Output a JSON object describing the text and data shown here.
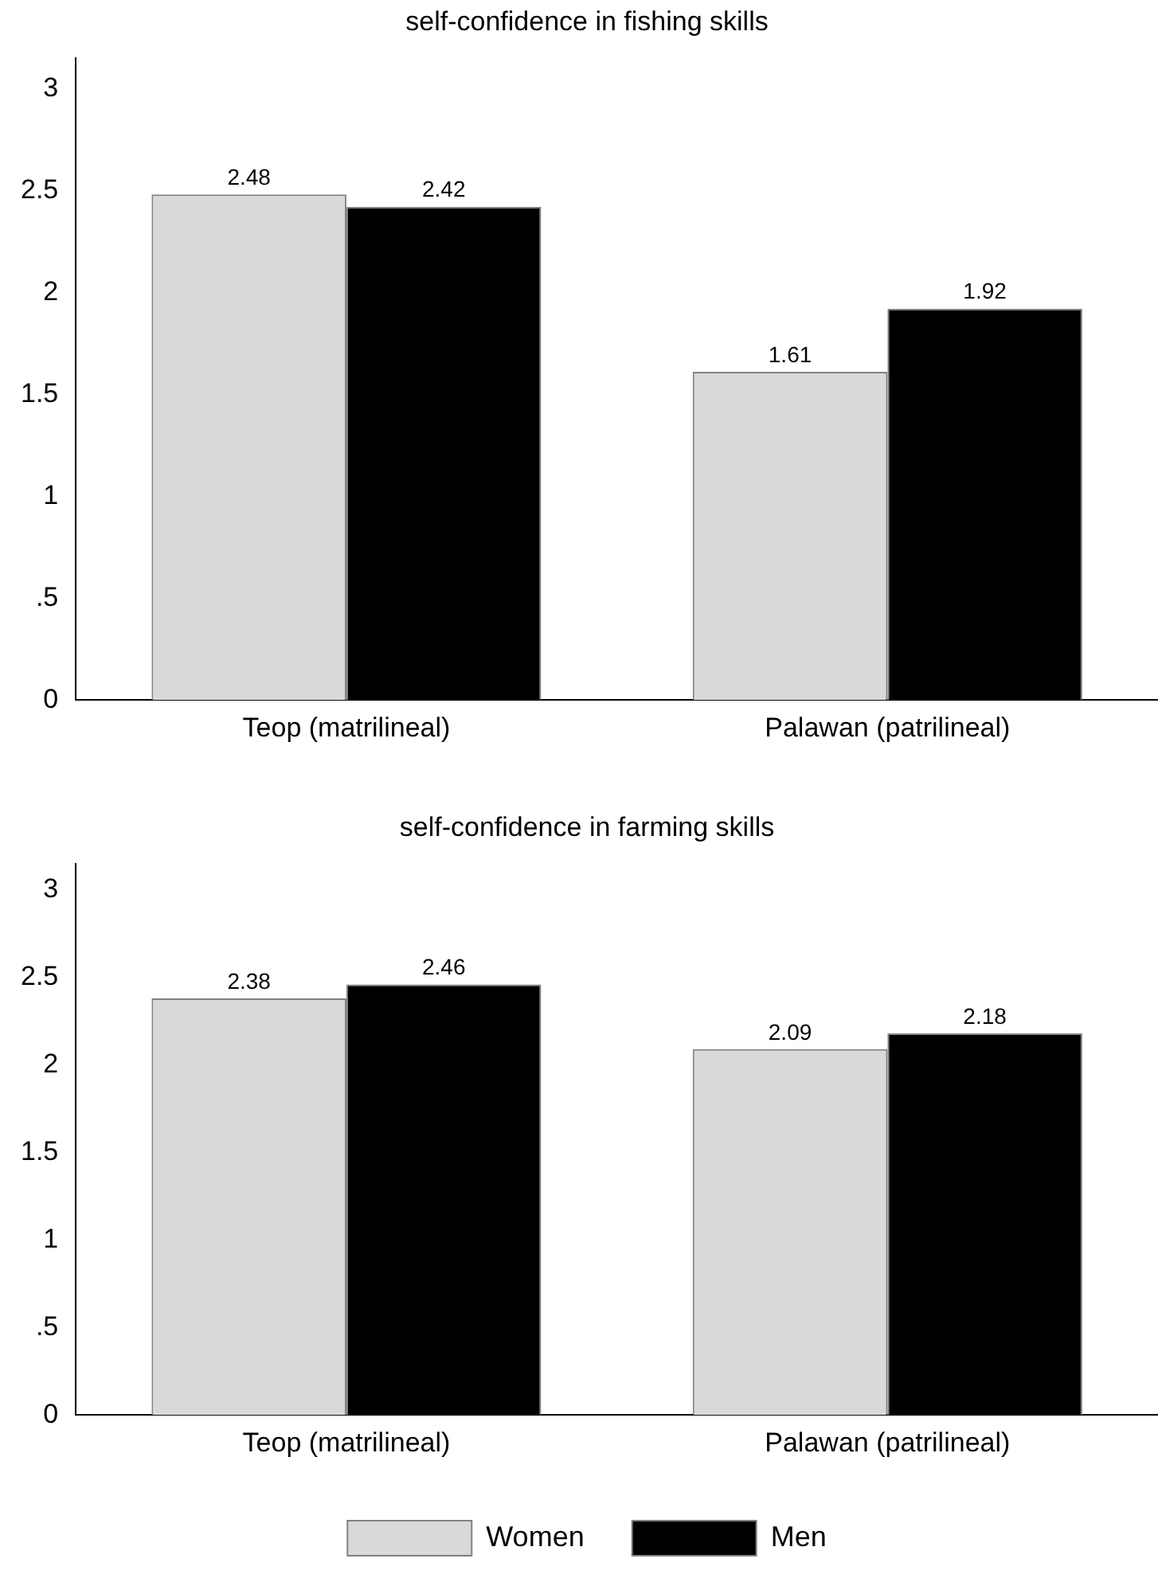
{
  "chart_data": [
    {
      "type": "bar",
      "title": "self-confidence in fishing skills",
      "categories": [
        "Teop (matrilineal)",
        "Palawan (patrilineal)"
      ],
      "series": [
        {
          "color": "#d9d9d9",
          "values": [
            2.48,
            1.61
          ]
        },
        {
          "color": "#000000",
          "values": [
            2.42,
            1.92
          ]
        }
      ],
      "ylim": [
        0,
        3.15
      ],
      "yticks": [
        0,
        {
          "value": 0.5,
          "label": ".5"
        },
        1,
        1.5,
        2,
        2.5,
        3
      ],
      "grid": false,
      "legend": false,
      "data_labels": true
    },
    {
      "type": "bar",
      "title": "self-confidence in farming skills",
      "categories": [
        "Teop (matrilineal)",
        "Palawan (patrilineal)"
      ],
      "series": [
        {
          "name": "Women",
          "color": "#d9d9d9",
          "values": [
            2.38,
            2.09
          ]
        },
        {
          "name": "Men",
          "color": "#000000",
          "values": [
            2.46,
            2.18
          ]
        }
      ],
      "ylim": [
        0,
        3.15
      ],
      "yticks": [
        0,
        {
          "value": 0.5,
          "label": ".5"
        },
        1,
        1.5,
        2,
        2.5,
        3
      ],
      "grid": false,
      "legend": "bottom",
      "data_labels": true
    }
  ]
}
